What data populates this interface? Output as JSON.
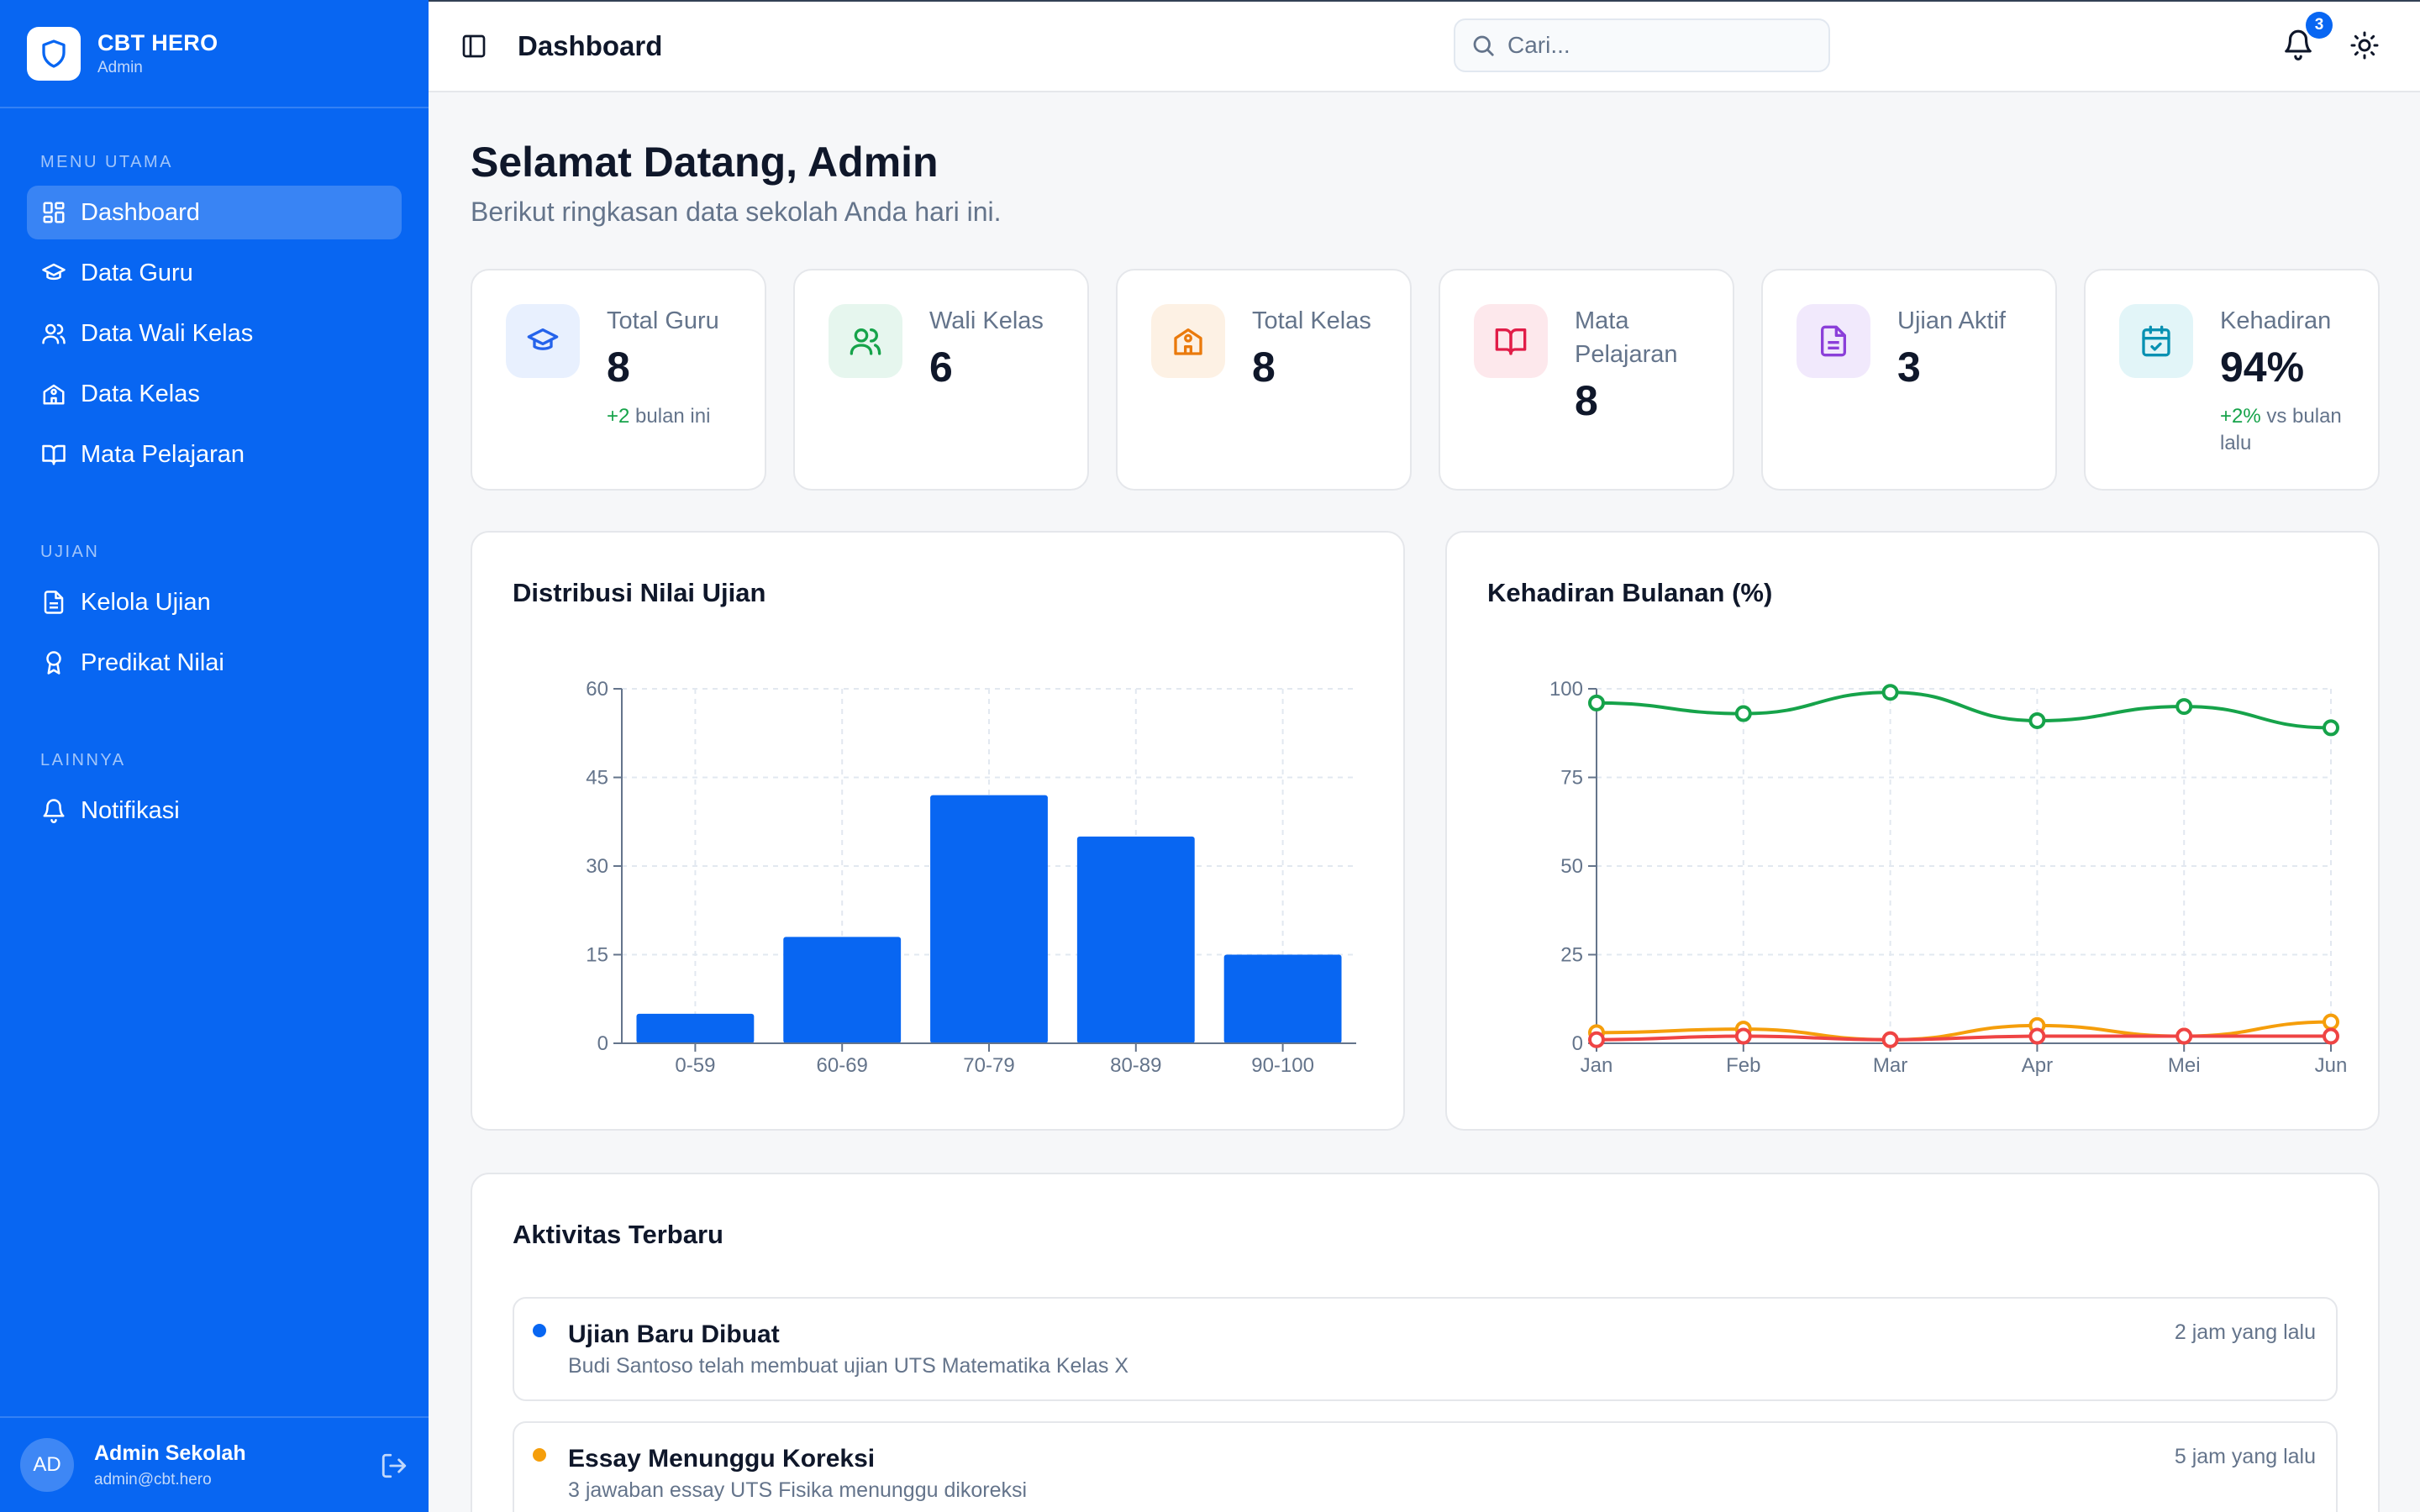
{
  "brand": {
    "name": "CBT HERO",
    "role": "Admin"
  },
  "sidebar": {
    "sections": [
      {
        "label": "MENU UTAMA",
        "items": [
          {
            "label": "Dashboard",
            "icon": "grid-icon",
            "active": true
          },
          {
            "label": "Data Guru",
            "icon": "graduation-cap-icon"
          },
          {
            "label": "Data Wali Kelas",
            "icon": "users-icon"
          },
          {
            "label": "Data Kelas",
            "icon": "school-icon"
          },
          {
            "label": "Mata Pelajaran",
            "icon": "book-icon"
          }
        ]
      },
      {
        "label": "UJIAN",
        "items": [
          {
            "label": "Kelola Ujian",
            "icon": "file-text-icon"
          },
          {
            "label": "Predikat Nilai",
            "icon": "award-icon"
          }
        ]
      },
      {
        "label": "LAINNYA",
        "items": [
          {
            "label": "Notifikasi",
            "icon": "bell-icon"
          }
        ]
      }
    ]
  },
  "user": {
    "initials": "AD",
    "name": "Admin Sekolah",
    "email": "admin@cbt.hero"
  },
  "header": {
    "title": "Dashboard",
    "search_placeholder": "Cari...",
    "notification_count": "3"
  },
  "welcome": {
    "title": "Selamat Datang, Admin",
    "subtitle": "Berikut ringkasan data sekolah Anda hari ini."
  },
  "stats": [
    {
      "label": "Total Guru",
      "value": "8",
      "note_up": "+2",
      "note": " bulan ini",
      "icon": "graduation-cap-icon",
      "color": "#2563eb",
      "bg": "#e8f0fe"
    },
    {
      "label": "Wali Kelas",
      "value": "6",
      "icon": "users-icon",
      "color": "#16a34a",
      "bg": "#e6f6ee"
    },
    {
      "label": "Total Kelas",
      "value": "8",
      "icon": "school-icon",
      "color": "#ea7a0c",
      "bg": "#fdf1e4"
    },
    {
      "label": "Mata Pelajaran",
      "value": "8",
      "icon": "book-icon",
      "color": "#e11d48",
      "bg": "#fde8ec"
    },
    {
      "label": "Ujian Aktif",
      "value": "3",
      "icon": "file-text-icon",
      "color": "#8b3fd9",
      "bg": "#f1e9fc"
    },
    {
      "label": "Kehadiran",
      "value": "94%",
      "note_up": "+2%",
      "note": " vs bulan lalu",
      "icon": "calendar-check-icon",
      "color": "#0891b2",
      "bg": "#e2f5f8"
    }
  ],
  "chart_data": [
    {
      "type": "bar",
      "title": "Distribusi Nilai Ujian",
      "categories": [
        "0-59",
        "60-69",
        "70-79",
        "80-89",
        "90-100"
      ],
      "values": [
        5,
        18,
        42,
        35,
        15
      ],
      "ylim": [
        0,
        60
      ],
      "yticks": [
        0,
        15,
        30,
        45,
        60
      ],
      "grid": true,
      "color": "#0866f2"
    },
    {
      "type": "line",
      "title": "Kehadiran Bulanan (%)",
      "categories": [
        "Jan",
        "Feb",
        "Mar",
        "Apr",
        "Mei",
        "Jun"
      ],
      "ylim": [
        0,
        100
      ],
      "yticks": [
        0,
        25,
        50,
        75,
        100
      ],
      "grid": true,
      "series": [
        {
          "values": [
            96,
            93,
            99,
            91,
            95,
            89
          ],
          "color": "#16a34a"
        },
        {
          "values": [
            3,
            4,
            1,
            5,
            2,
            6
          ],
          "color": "#f59e0b"
        },
        {
          "values": [
            1,
            2,
            1,
            2,
            2,
            2
          ],
          "color": "#ef4444"
        }
      ]
    }
  ],
  "activity": {
    "title": "Aktivitas Terbaru",
    "items": [
      {
        "title": "Ujian Baru Dibuat",
        "desc": "Budi Santoso telah membuat ujian UTS Matematika Kelas X",
        "time": "2 jam yang lalu",
        "color": "#0866f2"
      },
      {
        "title": "Essay Menunggu Koreksi",
        "desc": "3 jawaban essay UTS Fisika menunggu dikoreksi",
        "time": "5 jam yang lalu",
        "color": "#f59e0b"
      }
    ]
  }
}
